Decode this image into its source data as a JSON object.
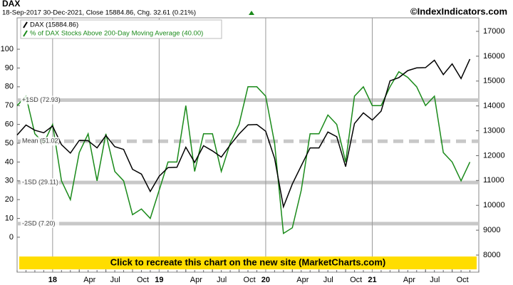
{
  "chart_data": {
    "type": "line",
    "title": "DAX",
    "subtitle": "18-Sep-2017    30-Dec-2021, Close 15884.86, Chg. 32.61 (0.21%)",
    "source": "©IndexIndicators.com",
    "banner": "Click to recreate this chart on the new site (MarketCharts.com)",
    "x": [
      "2017-09",
      "2017-10",
      "2017-11",
      "2017-12",
      "2018-01",
      "2018-02",
      "2018-03",
      "2018-04",
      "2018-05",
      "2018-06",
      "2018-07",
      "2018-08",
      "2018-09",
      "2018-10",
      "2018-11",
      "2018-12",
      "2019-01",
      "2019-02",
      "2019-03",
      "2019-04",
      "2019-05",
      "2019-06",
      "2019-07",
      "2019-08",
      "2019-09",
      "2019-10",
      "2019-11",
      "2019-12",
      "2020-01",
      "2020-02",
      "2020-03",
      "2020-04",
      "2020-05",
      "2020-06",
      "2020-07",
      "2020-08",
      "2020-09",
      "2020-10",
      "2020-11",
      "2020-12",
      "2021-01",
      "2021-02",
      "2021-03",
      "2021-04",
      "2021-05",
      "2021-06",
      "2021-07",
      "2021-08",
      "2021-09",
      "2021-10",
      "2021-11",
      "2021-12"
    ],
    "series": [
      {
        "name": "DAX (15884.86)",
        "color": "#000000",
        "axis": "y2",
        "values": [
          12830,
          13230,
          13020,
          12920,
          13190,
          12440,
          12100,
          12610,
          12600,
          12310,
          12810,
          12360,
          12250,
          11450,
          11260,
          10560,
          11170,
          11520,
          11530,
          12340,
          11730,
          12400,
          12190,
          11940,
          12430,
          12870,
          13240,
          13250,
          12980,
          11890,
          9940,
          10860,
          11590,
          12310,
          12310,
          12950,
          12760,
          11560,
          13290,
          13720,
          13430,
          13790,
          15010,
          15140,
          15420,
          15530,
          15540,
          15840,
          15260,
          15690,
          15100,
          15884.86
        ]
      },
      {
        "name": "% of DAX Stocks Above 200-Day Moving Average (40.00)",
        "color": "#1a8a1a",
        "values": [
          70,
          75,
          55,
          50,
          60,
          30,
          20,
          45,
          55,
          30,
          55,
          35,
          30,
          12,
          15,
          10,
          25,
          40,
          40,
          70,
          35,
          55,
          55,
          35,
          50,
          60,
          80,
          80,
          75,
          50,
          2,
          5,
          25,
          55,
          55,
          65,
          60,
          40,
          75,
          80,
          70,
          70,
          80,
          88,
          85,
          80,
          70,
          75,
          45,
          40,
          30,
          40
        ]
      }
    ],
    "bands": [
      {
        "label": "+1SD (72.93)",
        "value": 72.93
      },
      {
        "label": "Mean (51.02)",
        "value": 51.02,
        "dashed": true
      },
      {
        "label": "-1SD (29.11)",
        "value": 29.11
      },
      {
        "label": "-2SD (7.20)",
        "value": 7.2
      }
    ],
    "band_color": "#c8c8c8",
    "xlim": [
      "2017-09",
      "2022-01"
    ],
    "xticks": [
      {
        "value": "2018-01",
        "label": "18"
      },
      {
        "value": "2018-04",
        "label": "Apr"
      },
      {
        "value": "2018-07",
        "label": "Jul"
      },
      {
        "value": "2018-10",
        "label": "Oct"
      },
      {
        "value": "2019-01",
        "label": "19"
      },
      {
        "value": "2019-04",
        "label": "Apr"
      },
      {
        "value": "2019-07",
        "label": "Jul"
      },
      {
        "value": "2019-10",
        "label": "Oct"
      },
      {
        "value": "2020-01",
        "label": "20"
      },
      {
        "value": "2020-04",
        "label": "Apr"
      },
      {
        "value": "2020-07",
        "label": "Jul"
      },
      {
        "value": "2020-10",
        "label": "Oct"
      },
      {
        "value": "2021-01",
        "label": "21"
      },
      {
        "value": "2021-04",
        "label": "Apr"
      },
      {
        "value": "2021-07",
        "label": "Jul"
      },
      {
        "value": "2021-10",
        "label": "Oct"
      }
    ],
    "ylim": [
      -18.6,
      116.7
    ],
    "yticks": [
      0,
      10,
      20,
      30,
      40,
      50,
      60,
      70,
      80,
      90,
      100
    ],
    "y2lim": [
      7312,
      17544
    ],
    "y2ticks": [
      8000,
      9000,
      10000,
      11000,
      12000,
      13000,
      14000,
      15000,
      16000,
      17000
    ]
  }
}
